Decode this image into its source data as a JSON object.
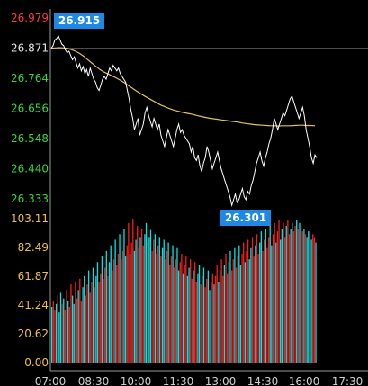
{
  "chart_data": [
    {
      "type": "line",
      "panel": "price",
      "ylim": [
        26.333,
        26.979
      ],
      "y_ticks": [
        {
          "value": 26.979,
          "label": "26.979",
          "color": "#ff3b3b"
        },
        {
          "value": 26.871,
          "label": "26.871",
          "color": "#e6e6e6"
        },
        {
          "value": 26.764,
          "label": "26.764",
          "color": "#35d635"
        },
        {
          "value": 26.656,
          "label": "26.656",
          "color": "#35d635"
        },
        {
          "value": 26.548,
          "label": "26.548",
          "color": "#35d635"
        },
        {
          "value": 26.44,
          "label": "26.440",
          "color": "#35d635"
        },
        {
          "value": 26.333,
          "label": "26.333",
          "color": "#35d635"
        }
      ],
      "reference_value": 26.871,
      "x_ticks": [
        "07:00",
        "08:30",
        "10:00",
        "11:30",
        "13:00",
        "14:30",
        "16:00",
        "17:30"
      ],
      "callouts": {
        "high": {
          "label": "26.915",
          "value": 26.915,
          "time_index": 4
        },
        "low": {
          "label": "26.301",
          "value": 26.301,
          "time_index": 72
        }
      },
      "series": [
        {
          "role": "price",
          "color": "#ffffff",
          "values": [
            26.871,
            26.88,
            26.9,
            26.905,
            26.915,
            26.9,
            26.885,
            26.88,
            26.865,
            26.855,
            26.86,
            26.845,
            26.83,
            26.84,
            26.82,
            26.8,
            26.815,
            26.79,
            26.805,
            26.78,
            26.795,
            26.77,
            26.8,
            26.78,
            26.76,
            26.75,
            26.73,
            26.72,
            26.74,
            26.76,
            26.77,
            26.76,
            26.78,
            26.8,
            26.79,
            26.81,
            26.8,
            26.79,
            26.8,
            26.78,
            26.77,
            26.76,
            26.75,
            26.72,
            26.69,
            26.65,
            26.62,
            26.58,
            26.6,
            26.62,
            26.56,
            26.58,
            26.6,
            26.64,
            26.66,
            26.63,
            26.61,
            26.59,
            26.62,
            26.6,
            26.58,
            26.6,
            26.56,
            26.54,
            26.52,
            26.55,
            26.58,
            26.56,
            26.54,
            26.52,
            26.55,
            26.58,
            26.6,
            26.57,
            26.58,
            26.56,
            26.55,
            26.54,
            26.53,
            26.5,
            26.52,
            26.48,
            26.47,
            26.49,
            26.45,
            26.43,
            26.46,
            26.48,
            26.52,
            26.5,
            26.47,
            26.44,
            26.46,
            26.48,
            26.5,
            26.47,
            26.44,
            26.42,
            26.4,
            26.38,
            26.36,
            26.34,
            26.31,
            26.33,
            26.35,
            26.32,
            26.33,
            26.35,
            26.37,
            26.34,
            26.33,
            26.36,
            26.35,
            26.38,
            26.4,
            26.43,
            26.46,
            26.48,
            26.5,
            26.47,
            26.45,
            26.48,
            26.5,
            26.53,
            26.55,
            26.58,
            26.62,
            26.6,
            26.58,
            26.6,
            26.62,
            26.64,
            26.63,
            26.65,
            26.67,
            26.69,
            26.7,
            26.68,
            26.66,
            26.64,
            26.62,
            26.64,
            26.66,
            26.63,
            26.58,
            26.55,
            26.52,
            26.48,
            26.46,
            26.49,
            26.48
          ]
        },
        {
          "role": "moving-average",
          "color": "#e0c060",
          "values": [
            26.871,
            26.872,
            26.873,
            26.872,
            26.87,
            26.866,
            26.86,
            26.852,
            26.842,
            26.83,
            26.818,
            26.806,
            26.795,
            26.786,
            26.779,
            26.772,
            26.765,
            26.757,
            26.748,
            26.738,
            26.728,
            26.718,
            26.709,
            26.7,
            26.692,
            26.684,
            26.676,
            26.668,
            26.662,
            26.656,
            26.651,
            26.647,
            26.643,
            26.64,
            26.637,
            26.634,
            26.63,
            26.627,
            26.624,
            26.621,
            26.619,
            26.617,
            26.615,
            26.613,
            26.611,
            26.609,
            26.607,
            26.604,
            26.602,
            26.6,
            26.598,
            26.597,
            26.596,
            26.595,
            26.594,
            26.594,
            26.593,
            26.594,
            26.594,
            26.594,
            26.595,
            26.596,
            26.596,
            26.595,
            26.595,
            26.594
          ]
        }
      ]
    },
    {
      "type": "bar",
      "panel": "volume",
      "ylim": [
        0,
        103.11
      ],
      "y_ticks": [
        {
          "value": 0.0,
          "label": "0.00"
        },
        {
          "value": 20.62,
          "label": "20.62"
        },
        {
          "value": 41.24,
          "label": "41.24"
        },
        {
          "value": 61.87,
          "label": "61.87"
        },
        {
          "value": 82.49,
          "label": "82.49"
        },
        {
          "value": 103.11,
          "label": "103.11"
        }
      ],
      "up_color": "#00e5e5",
      "down_color": "#ff1a1a",
      "values": [
        40,
        44,
        38,
        42,
        48,
        36,
        50,
        42,
        46,
        38,
        52,
        44,
        40,
        56,
        48,
        42,
        58,
        46,
        52,
        60,
        44,
        54,
        62,
        48,
        56,
        66,
        50,
        58,
        68,
        54,
        62,
        72,
        58,
        64,
        76,
        60,
        68,
        80,
        62,
        72,
        84,
        66,
        74,
        88,
        70,
        78,
        92,
        74,
        80,
        96,
        76,
        84,
        100,
        78,
        86,
        103,
        80,
        88,
        98,
        82,
        90,
        96,
        84,
        92,
        100,
        86,
        90,
        95,
        80,
        88,
        92,
        78,
        84,
        90,
        76,
        82,
        88,
        74,
        80,
        86,
        70,
        76,
        84,
        68,
        74,
        82,
        66,
        72,
        78,
        64,
        70,
        76,
        62,
        68,
        74,
        60,
        66,
        72,
        58,
        64,
        70,
        56,
        62,
        68,
        54,
        60,
        66,
        52,
        58,
        64,
        56,
        62,
        70,
        58,
        66,
        74,
        62,
        70,
        78,
        64,
        72,
        80,
        66,
        74,
        82,
        68,
        76,
        84,
        70,
        78,
        86,
        72,
        80,
        88,
        74,
        82,
        90,
        76,
        84,
        92,
        78,
        86,
        94,
        80,
        88,
        96,
        82,
        90,
        98,
        84,
        92,
        100,
        86,
        94,
        102,
        88,
        96,
        100,
        90,
        98,
        102,
        92,
        96,
        100,
        94,
        98,
        102,
        96,
        100,
        98,
        94,
        96,
        92,
        90,
        94,
        96,
        88,
        92,
        90,
        86
      ],
      "directions": "udduduududdudduuddudduuddudduduuddudduduudduddudduuddudduuddudduuduuddudduduudduddudduuddudduuddudduuddudduuddudduuddudduuddudduuddudduuddudduuddudduuddudduuddudduuddud"
    }
  ]
}
